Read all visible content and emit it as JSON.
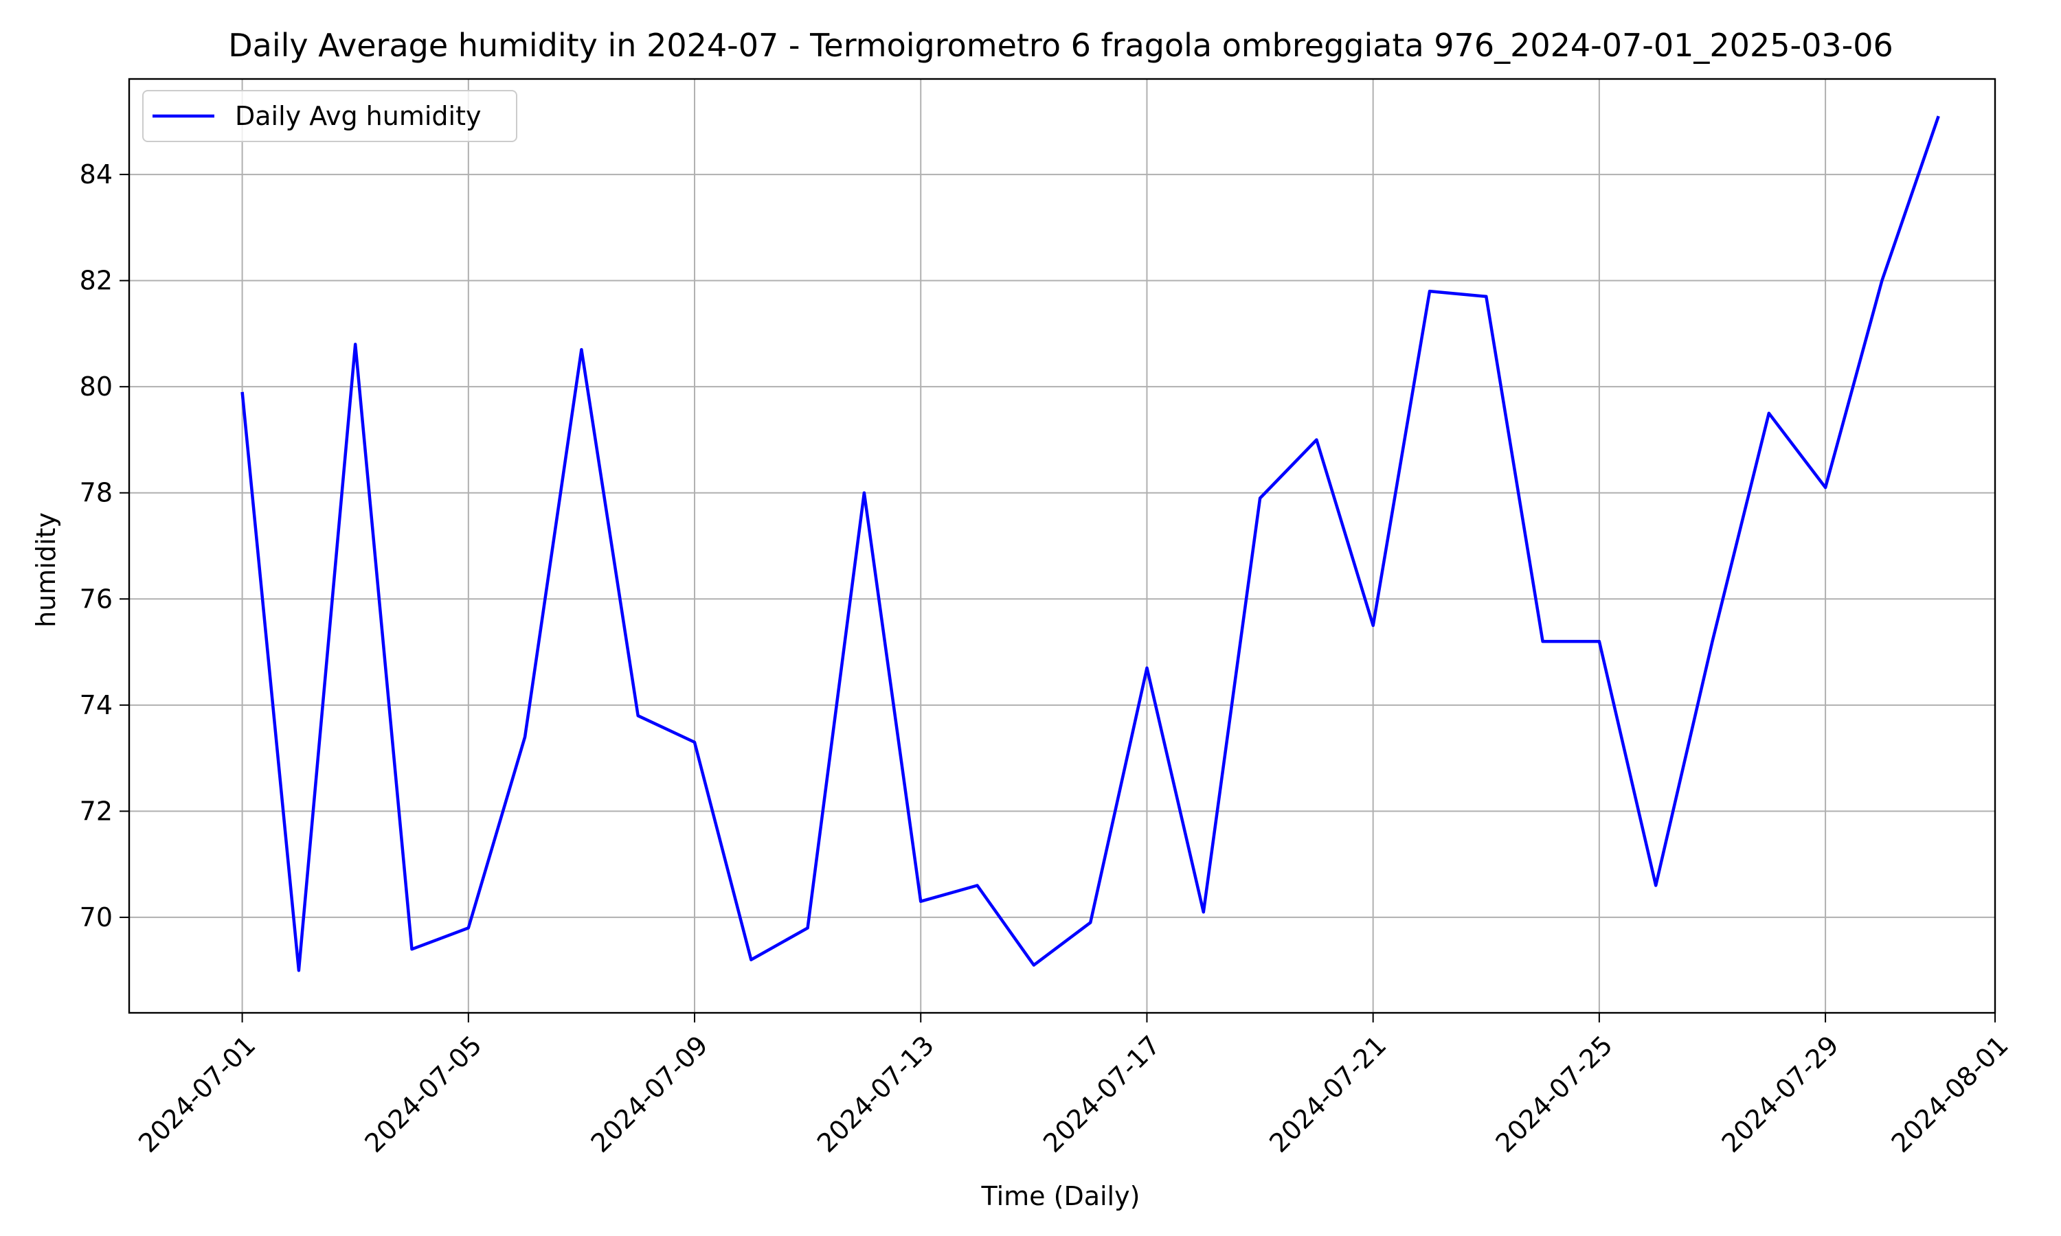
{
  "chart_data": {
    "type": "line",
    "title": "Daily Average humidity in 2024-07 - Termoigrometro 6 fragola ombreggiata 976_2024-07-01_2025-03-06",
    "xlabel": "Time (Daily)",
    "ylabel": "humidity",
    "x_type": "date",
    "xlim": [
      "2024-06-29",
      "2024-08-01"
    ],
    "ylim": [
      68.2,
      85.8
    ],
    "x_ticks": [
      "2024-07-01",
      "2024-07-05",
      "2024-07-09",
      "2024-07-13",
      "2024-07-17",
      "2024-07-21",
      "2024-07-25",
      "2024-07-29",
      "2024-08-01"
    ],
    "y_ticks": [
      70,
      72,
      74,
      76,
      78,
      80,
      82,
      84
    ],
    "grid": true,
    "legend_position": "upper left",
    "series": [
      {
        "name": "Daily Avg humidity",
        "color": "#0000ff",
        "x": [
          "2024-07-01",
          "2024-07-02",
          "2024-07-03",
          "2024-07-04",
          "2024-07-05",
          "2024-07-06",
          "2024-07-07",
          "2024-07-08",
          "2024-07-09",
          "2024-07-10",
          "2024-07-11",
          "2024-07-12",
          "2024-07-13",
          "2024-07-14",
          "2024-07-15",
          "2024-07-16",
          "2024-07-17",
          "2024-07-18",
          "2024-07-19",
          "2024-07-20",
          "2024-07-21",
          "2024-07-22",
          "2024-07-23",
          "2024-07-24",
          "2024-07-25",
          "2024-07-26",
          "2024-07-27",
          "2024-07-28",
          "2024-07-29",
          "2024-07-30",
          "2024-07-31"
        ],
        "values": [
          79.9,
          69.0,
          80.8,
          69.4,
          69.8,
          73.4,
          80.7,
          73.8,
          73.3,
          69.2,
          69.8,
          78.0,
          70.3,
          70.6,
          69.1,
          69.9,
          74.7,
          70.1,
          77.9,
          79.0,
          75.5,
          81.8,
          81.7,
          75.2,
          75.2,
          70.6,
          75.2,
          79.5,
          78.1,
          82.0,
          85.1
        ]
      }
    ]
  }
}
